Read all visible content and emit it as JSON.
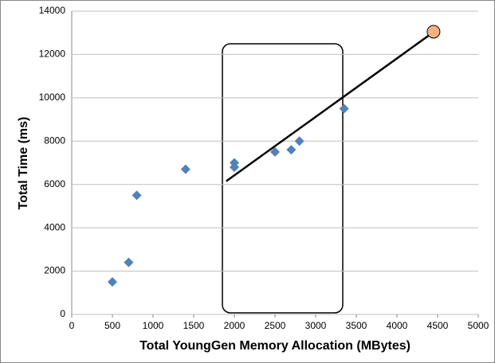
{
  "chart_data": {
    "type": "scatter",
    "x_label": "Total YoungGen Memory Allocation (MBytes)",
    "y_label": "Total Time (ms)",
    "xlim": [
      0,
      5000
    ],
    "xticks": [
      0,
      500,
      1000,
      1500,
      2000,
      2500,
      3000,
      3500,
      4000,
      4500,
      5000
    ],
    "ylim": [
      0,
      14000
    ],
    "yticks": [
      0,
      2000,
      4000,
      6000,
      8000,
      10000,
      12000,
      14000
    ],
    "grid": true,
    "series": [
      {
        "color": "#4f81bd",
        "marker": "diamond",
        "x": [
          500,
          700,
          800,
          1400,
          2000,
          2000,
          2500,
          2700,
          2800,
          3350
        ],
        "y": [
          1500,
          2400,
          5500,
          6700,
          7000,
          6800,
          7500,
          7600,
          8000,
          9500
        ]
      },
      {
        "color": "#f4b183",
        "marker": "circle",
        "x": [
          4450
        ],
        "y": [
          13050
        ]
      }
    ],
    "trend_line": {
      "color": "#000000",
      "x": [
        1900,
        4400
      ],
      "y": [
        6150,
        12900
      ]
    }
  }
}
